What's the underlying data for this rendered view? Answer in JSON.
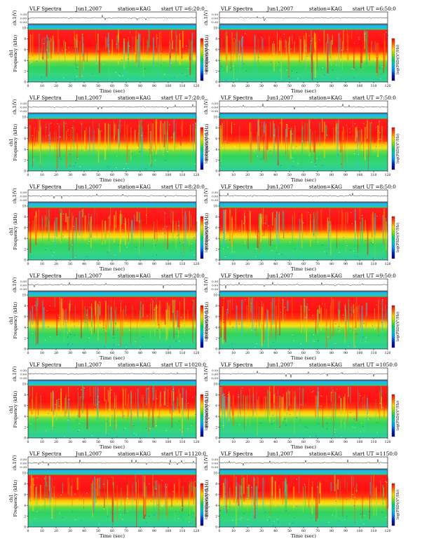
{
  "page": {
    "background": "#ffffff"
  },
  "panel_text": {
    "title": "VLF Spectra",
    "date": "Jun1,2007",
    "station": "station=KAG",
    "start_prefix": "start  UT  ="
  },
  "axes_text": {
    "ch_label": "ch.1(V)",
    "freq_label": "Frequency  (kHz)",
    "freq_label_alt": "ch1 Frequency  (kHz)",
    "time_label": "Time  (sec)",
    "colorbar_label": "log(PSD)(V²/Hz)",
    "ch_ticks": [
      "0.30",
      "0.00",
      "-0.30"
    ],
    "freq_ticks": [
      "0",
      "2",
      "4",
      "6",
      "8",
      "10"
    ],
    "time_ticks": [
      "0",
      "10",
      "20",
      "30",
      "40",
      "50",
      "60",
      "70",
      "80",
      "90",
      "100",
      "110",
      "120"
    ]
  },
  "colors": {
    "spectrogram_bands": [
      "#ff1a1a",
      "#ff2a10",
      "#ffd800",
      "#f5e020",
      "#2fd35f",
      "#3ed77a",
      "#2fd35f",
      "#1ecfa0",
      "#30c5d8",
      "#1a3cff"
    ],
    "top_band": "#22b8e8",
    "top_band_edge": "#2ad08a",
    "colorbar": [
      "#ff0000",
      "#ff6a00",
      "#ffd800",
      "#8fe000",
      "#00d26a",
      "#00c8c8",
      "#0090ff",
      "#0020c0",
      "#000080"
    ]
  },
  "chart_data": [
    {
      "type": "heatmap",
      "title": "VLF Spectra",
      "date": "Jun1,2007",
      "station": "station=KAG",
      "start_ut": "6:20:0",
      "xlabel": "Time (sec)",
      "ylabel": "Frequency (kHz)",
      "xlim": [
        0,
        120
      ],
      "ylim": [
        0,
        10
      ],
      "colorbar_label": "log(PSD)(V²/Hz)",
      "waveform_label": "ch.1(V)",
      "waveform_ylim": [
        -0.3,
        0.3
      ]
    },
    {
      "type": "heatmap",
      "title": "VLF Spectra",
      "date": "Jun1,2007",
      "station": "station=KAG",
      "start_ut": "6:50:0",
      "xlabel": "Time (sec)",
      "ylabel": "Frequency (kHz)",
      "xlim": [
        0,
        120
      ],
      "ylim": [
        0,
        10
      ],
      "colorbar_label": "log(PSD)(V²/Hz)",
      "waveform_label": "ch.1(V)",
      "waveform_ylim": [
        -0.3,
        0.3
      ]
    },
    {
      "type": "heatmap",
      "title": "VLF Spectra",
      "date": "Jun1,2007",
      "station": "station=KAG",
      "start_ut": "7:20:0",
      "xlabel": "Time (sec)",
      "ylabel": "Frequency (kHz)",
      "xlim": [
        0,
        120
      ],
      "ylim": [
        0,
        10
      ],
      "colorbar_label": "log(PSD)(V²/Hz)",
      "waveform_label": "ch.1(V)",
      "waveform_ylim": [
        -0.3,
        0.3
      ]
    },
    {
      "type": "heatmap",
      "title": "VLF Spectra",
      "date": "Jun1,2007",
      "station": "station=KAG",
      "start_ut": "7:50:0",
      "xlabel": "Time (sec)",
      "ylabel": "Frequency (kHz)",
      "xlim": [
        0,
        120
      ],
      "ylim": [
        0,
        10
      ],
      "colorbar_label": "log(PSD)(V²/Hz)",
      "waveform_label": "ch.1(V)",
      "waveform_ylim": [
        -0.3,
        0.3
      ]
    },
    {
      "type": "heatmap",
      "title": "VLF Spectra",
      "date": "Jun1,2007",
      "station": "station=KAG",
      "start_ut": "8:20:0",
      "xlabel": "Time (sec)",
      "ylabel": "Frequency (kHz)",
      "xlim": [
        0,
        120
      ],
      "ylim": [
        0,
        10
      ],
      "colorbar_label": "log(PSD)(V²/Hz)",
      "waveform_label": "ch.1(V)",
      "waveform_ylim": [
        -0.3,
        0.3
      ]
    },
    {
      "type": "heatmap",
      "title": "VLF Spectra",
      "date": "Jun1,2007",
      "station": "station=KAG",
      "start_ut": "8:50:0",
      "xlabel": "Time (sec)",
      "ylabel": "Frequency (kHz)",
      "xlim": [
        0,
        120
      ],
      "ylim": [
        0,
        10
      ],
      "colorbar_label": "log(PSD)(V²/Hz)",
      "waveform_label": "ch.1(V)",
      "waveform_ylim": [
        -0.3,
        0.3
      ]
    },
    {
      "type": "heatmap",
      "title": "VLF Spectra",
      "date": "Jun1,2007",
      "station": "station=KAG",
      "start_ut": "9:20:0",
      "xlabel": "Time (sec)",
      "ylabel": "Frequency (kHz)",
      "xlim": [
        0,
        120
      ],
      "ylim": [
        0,
        10
      ],
      "colorbar_label": "log(PSD)(V²/Hz)",
      "waveform_label": "ch.1(V)",
      "waveform_ylim": [
        -0.3,
        0.3
      ]
    },
    {
      "type": "heatmap",
      "title": "VLF Spectra",
      "date": "Jun1,2007",
      "station": "station=KAG",
      "start_ut": "9:50:0",
      "xlabel": "Time (sec)",
      "ylabel": "Frequency (kHz)",
      "xlim": [
        0,
        120
      ],
      "ylim": [
        0,
        10
      ],
      "colorbar_label": "log(PSD)(V²/Hz)",
      "waveform_label": "ch.1(V)",
      "waveform_ylim": [
        -0.3,
        0.3
      ]
    },
    {
      "type": "heatmap",
      "title": "VLF Spectra",
      "date": "Jun1,2007",
      "station": "station=KAG",
      "start_ut": "1020:0",
      "xlabel": "Time (sec)",
      "ylabel": "Frequency (kHz)",
      "xlim": [
        0,
        120
      ],
      "ylim": [
        0,
        10
      ],
      "colorbar_label": "log(PSD)(V²/Hz)",
      "waveform_label": "ch.1(V)",
      "waveform_ylim": [
        -0.3,
        0.3
      ]
    },
    {
      "type": "heatmap",
      "title": "VLF Spectra",
      "date": "Jun1,2007",
      "station": "station=KAG",
      "start_ut": "1050:0",
      "xlabel": "Time (sec)",
      "ylabel": "Frequency (kHz)",
      "xlim": [
        0,
        120
      ],
      "ylim": [
        0,
        10
      ],
      "colorbar_label": "log(PSD)(V²/Hz)",
      "waveform_label": "ch.1(V)",
      "waveform_ylim": [
        -0.3,
        0.3
      ]
    },
    {
      "type": "heatmap",
      "title": "VLF Spectra",
      "date": "Jun1,2007",
      "station": "station=KAG",
      "start_ut": "1120:0",
      "xlabel": "Time (sec)",
      "ylabel": "Frequency (kHz)",
      "xlim": [
        0,
        120
      ],
      "ylim": [
        0,
        10
      ],
      "colorbar_label": "log(PSD)(V²/Hz)",
      "waveform_label": "ch.1(V)",
      "waveform_ylim": [
        -0.3,
        0.3
      ]
    },
    {
      "type": "heatmap",
      "title": "VLF Spectra",
      "date": "Jun1,2007",
      "station": "station=KAG",
      "start_ut": "1150:0",
      "xlabel": "Time (sec)",
      "ylabel": "Frequency (kHz)",
      "xlim": [
        0,
        120
      ],
      "ylim": [
        0,
        10
      ],
      "colorbar_label": "log(PSD)(V²/Hz)",
      "waveform_label": "ch.1(V)",
      "waveform_ylim": [
        -0.3,
        0.3
      ]
    }
  ]
}
